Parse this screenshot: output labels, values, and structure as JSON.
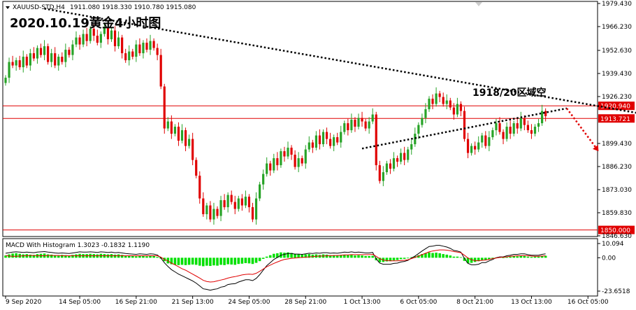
{
  "chart_data": {
    "type": "candlestick",
    "header": {
      "symbol": "XAUUSD-STD,H4",
      "ohlc": "1911.080 1918.330 1910.780 1915.080"
    },
    "title": "2020.10.19黄金4小时图",
    "annotation": "1918/20区域空",
    "price_axis": {
      "range": [
        1846.63,
        1979.43
      ],
      "ticks": [
        "1979.430",
        "1966.230",
        "1952.630",
        "1939.430",
        "1926.230",
        "1899.430",
        "1886.230",
        "1873.030",
        "1859.830",
        "1846.630"
      ]
    },
    "levels": [
      {
        "value": 1920.94,
        "label": "1920.940",
        "color": "#e00000"
      },
      {
        "value": 1913.721,
        "label": "1913.721",
        "color": "#e00000"
      },
      {
        "value": 1850.0,
        "label": "1850.000",
        "color": "#e00000"
      }
    ],
    "trendlines": [
      {
        "from": [
          11,
          1976.5
        ],
        "to": [
          187,
          1914.0
        ],
        "style": "dotted",
        "color": "#000000"
      },
      {
        "from": [
          101,
          1896.5
        ],
        "to": [
          159,
          1919.5
        ],
        "style": "dotted",
        "color": "#000000"
      },
      {
        "from": [
          159,
          1919.5
        ],
        "to": [
          168,
          1895.0
        ],
        "style": "dotted-arrow",
        "color": "#e00000"
      }
    ],
    "time_axis": {
      "labels": [
        "9 Sep 2020",
        "14 Sep 05:00",
        "16 Sep 21:00",
        "21 Sep 13:00",
        "24 Sep 05:00",
        "28 Sep 21:00",
        "1 Oct 13:00",
        "6 Oct 05:00",
        "8 Oct 21:00",
        "13 Oct 13:00",
        "16 Oct 05:00"
      ],
      "label_bars": [
        0,
        21,
        37,
        53,
        69,
        85,
        101,
        117,
        133,
        149,
        165
      ]
    },
    "closes": [
      1937,
      1946,
      1944,
      1947,
      1943,
      1949,
      1944,
      1951,
      1948,
      1954,
      1950,
      1955,
      1946,
      1951,
      1944,
      1949,
      1946,
      1953,
      1950,
      1956,
      1960,
      1956,
      1962,
      1958,
      1965,
      1961,
      1957,
      1962,
      1966,
      1959,
      1964,
      1955,
      1960,
      1951,
      1947,
      1952,
      1949,
      1956,
      1951,
      1957,
      1953,
      1958,
      1954,
      1950,
      1932,
      1908,
      1912,
      1905,
      1909,
      1901,
      1907,
      1898,
      1902,
      1890,
      1881,
      1868,
      1859,
      1864,
      1856,
      1862,
      1858,
      1867,
      1863,
      1870,
      1866,
      1862,
      1868,
      1864,
      1869,
      1863,
      1856,
      1868,
      1876,
      1882,
      1888,
      1884,
      1891,
      1887,
      1895,
      1892,
      1897,
      1893,
      1886,
      1891,
      1888,
      1896,
      1900,
      1897,
      1904,
      1899,
      1906,
      1902,
      1898,
      1903,
      1900,
      1906,
      1911,
      1907,
      1913,
      1909,
      1914,
      1912,
      1908,
      1912,
      1916,
      1887,
      1878,
      1883,
      1888,
      1885,
      1891,
      1889,
      1894,
      1890,
      1896,
      1899,
      1905,
      1910,
      1914,
      1919,
      1925,
      1922,
      1928,
      1926,
      1922,
      1924,
      1920,
      1916,
      1922,
      1918,
      1902,
      1894,
      1898,
      1896,
      1900,
      1904,
      1898,
      1903,
      1907,
      1911,
      1906,
      1902,
      1909,
      1905,
      1911,
      1908,
      1914,
      1910,
      1907,
      1905,
      1909,
      1911,
      1918,
      1915
    ],
    "macd_panel": {
      "header": "MACD With Histogram 1.3023 -0.1832 1.1190",
      "ticks": [
        "10.094",
        "0.00",
        "-23.6518"
      ],
      "range": [
        -23.6518,
        10.094
      ],
      "histogram": [
        1.6,
        2.4,
        3.0,
        3.2,
        2.8,
        2.4,
        2.6,
        2.2,
        2.0,
        2.6,
        2.8,
        3.0,
        2.4,
        2.2,
        1.8,
        1.6,
        2.0,
        1.8,
        1.6,
        2.0,
        2.4,
        2.8,
        2.6,
        2.6,
        2.8,
        2.6,
        2.4,
        2.8,
        2.6,
        2.4,
        2.6,
        2.2,
        2.4,
        2.0,
        1.6,
        1.4,
        1.2,
        1.0,
        1.4,
        1.2,
        1.0,
        1.4,
        1.2,
        0.6,
        -0.6,
        -2.4,
        -4.0,
        -4.6,
        -5.0,
        -5.2,
        -5.0,
        -5.2,
        -5.0,
        -4.8,
        -5.0,
        -5.6,
        -6.0,
        -5.6,
        -5.8,
        -5.4,
        -5.6,
        -5.0,
        -5.2,
        -4.6,
        -4.8,
        -5.0,
        -4.4,
        -4.2,
        -3.8,
        -4.0,
        -4.4,
        -3.6,
        -2.4,
        -0.8,
        0.8,
        1.8,
        2.8,
        3.2,
        3.8,
        3.6,
        3.8,
        3.4,
        2.8,
        2.6,
        2.2,
        2.4,
        2.6,
        2.2,
        2.4,
        2.0,
        2.4,
        2.2,
        1.8,
        1.8,
        1.6,
        1.8,
        2.0,
        1.8,
        2.0,
        1.6,
        1.8,
        1.6,
        1.2,
        1.2,
        1.4,
        -1.8,
        -3.2,
        -3.0,
        -2.6,
        -2.4,
        -1.8,
        -1.6,
        -1.0,
        -0.8,
        -0.4,
        0.4,
        1.0,
        1.8,
        2.6,
        3.2,
        3.8,
        3.4,
        3.6,
        3.2,
        2.6,
        2.2,
        1.6,
        0.8,
        0.8,
        0.4,
        -2.2,
        -3.8,
        -3.6,
        -3.0,
        -2.4,
        -1.6,
        -1.8,
        -1.0,
        -0.6,
        0.2,
        0.4,
        0.2,
        0.8,
        0.8,
        1.2,
        1.0,
        1.4,
        1.2,
        0.8,
        0.6,
        0.8,
        0.8,
        1.2,
        1.4
      ],
      "macd_line": [
        3.2,
        3.6,
        4.0,
        4.2,
        4.0,
        3.8,
        4.0,
        3.8,
        3.6,
        4.0,
        4.2,
        4.4,
        4.0,
        3.8,
        3.4,
        3.2,
        3.4,
        3.2,
        3.0,
        3.4,
        3.8,
        4.2,
        4.0,
        4.0,
        4.2,
        4.0,
        3.8,
        4.2,
        4.0,
        3.8,
        4.0,
        3.6,
        3.8,
        3.4,
        3.0,
        2.8,
        2.6,
        2.4,
        2.8,
        2.6,
        2.4,
        2.8,
        2.6,
        2.0,
        -0.2,
        -3.6,
        -6.2,
        -8.4,
        -10.0,
        -11.6,
        -12.8,
        -14.0,
        -15.2,
        -16.4,
        -18.0,
        -20.0,
        -22.0,
        -22.4,
        -23.0,
        -22.4,
        -22.0,
        -20.8,
        -20.4,
        -19.0,
        -18.6,
        -18.4,
        -17.2,
        -16.4,
        -15.6,
        -15.6,
        -16.2,
        -14.6,
        -12.0,
        -8.8,
        -5.6,
        -3.4,
        -1.2,
        0.2,
        1.8,
        2.4,
        3.0,
        3.0,
        2.6,
        2.6,
        2.4,
        2.8,
        3.2,
        3.0,
        3.4,
        3.2,
        3.6,
        3.6,
        3.2,
        3.4,
        3.2,
        3.6,
        4.0,
        3.8,
        4.2,
        3.8,
        4.0,
        3.8,
        3.4,
        3.4,
        3.8,
        -0.8,
        -3.8,
        -4.6,
        -4.6,
        -4.6,
        -4.0,
        -3.8,
        -3.0,
        -2.6,
        -1.8,
        -0.2,
        1.2,
        3.0,
        4.8,
        6.4,
        8.0,
        8.2,
        8.8,
        8.8,
        8.2,
        7.6,
        6.6,
        5.2,
        4.8,
        4.0,
        -0.4,
        -4.0,
        -5.0,
        -5.0,
        -4.6,
        -3.4,
        -3.4,
        -2.2,
        -1.2,
        0.0,
        0.6,
        0.6,
        1.4,
        1.8,
        2.4,
        2.4,
        2.8,
        2.8,
        2.2,
        1.8,
        1.8,
        1.8,
        2.4,
        2.8
      ],
      "signal_line": [
        1.6,
        1.2,
        1.0,
        1.0,
        1.2,
        1.4,
        1.4,
        1.6,
        1.6,
        1.4,
        1.4,
        1.4,
        1.6,
        1.6,
        1.6,
        1.6,
        1.4,
        1.4,
        1.4,
        1.4,
        1.4,
        1.4,
        1.4,
        1.4,
        1.4,
        1.4,
        1.4,
        1.4,
        1.4,
        1.4,
        1.4,
        1.4,
        1.4,
        1.4,
        1.4,
        1.4,
        1.4,
        1.4,
        1.4,
        1.4,
        1.4,
        1.4,
        1.4,
        1.4,
        0.4,
        -1.2,
        -2.2,
        -3.8,
        -5.0,
        -6.4,
        -7.8,
        -8.8,
        -10.2,
        -11.6,
        -13.0,
        -14.4,
        -16.0,
        -16.8,
        -17.2,
        -17.0,
        -16.4,
        -15.8,
        -15.2,
        -14.4,
        -13.8,
        -13.4,
        -12.8,
        -12.2,
        -11.8,
        -11.6,
        -11.8,
        -11.0,
        -9.6,
        -8.0,
        -6.4,
        -5.2,
        -4.0,
        -3.0,
        -2.0,
        -1.2,
        -0.8,
        -0.4,
        -0.2,
        0.0,
        0.2,
        0.4,
        0.6,
        0.8,
        1.0,
        1.2,
        1.2,
        1.4,
        1.4,
        1.6,
        1.6,
        1.8,
        2.0,
        2.0,
        2.2,
        2.2,
        2.2,
        2.2,
        2.2,
        2.2,
        2.4,
        1.0,
        -0.6,
        -1.6,
        -2.0,
        -2.2,
        -2.2,
        -2.2,
        -2.0,
        -1.8,
        -1.4,
        -0.6,
        0.2,
        1.2,
        2.2,
        3.2,
        4.2,
        4.8,
        5.2,
        5.6,
        5.6,
        5.4,
        5.0,
        4.4,
        4.0,
        3.6,
        1.8,
        -0.2,
        -1.4,
        -2.0,
        -2.2,
        -1.8,
        -1.6,
        -1.2,
        -0.6,
        -0.2,
        0.2,
        0.4,
        0.6,
        1.0,
        1.2,
        1.4,
        1.4,
        1.6,
        1.4,
        1.2,
        1.0,
        1.0,
        1.2,
        1.4
      ]
    }
  }
}
